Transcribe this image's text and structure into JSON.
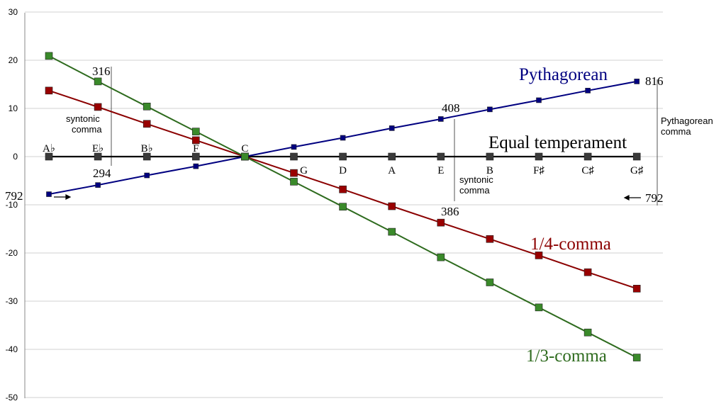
{
  "chart_data": {
    "type": "line",
    "title": "",
    "xlabel": "",
    "ylabel": "",
    "ylim": [
      -50,
      30
    ],
    "yticks": [
      30,
      20,
      10,
      0,
      -10,
      -20,
      -30,
      -40,
      -50
    ],
    "grid": true,
    "notes_left": [
      "A♭",
      "E♭",
      "B♭",
      "F",
      "C"
    ],
    "notes_right": [
      "G",
      "D",
      "A",
      "E",
      "B",
      "F♯",
      "C♯",
      "G♯"
    ],
    "series": [
      {
        "name": "Equal temperament",
        "color": "#000000",
        "marker": "#3a3a3a",
        "values": [
          0,
          0,
          0,
          0,
          0,
          0,
          0,
          0,
          0,
          0,
          0,
          0,
          0
        ]
      },
      {
        "name": "Pythagorean",
        "color": "#000080",
        "marker": "#000080",
        "values": [
          -7.8,
          -5.9,
          -3.9,
          -2.0,
          0,
          2.0,
          3.9,
          5.9,
          7.8,
          9.8,
          11.7,
          13.7,
          15.6
        ]
      },
      {
        "name": "1/4-comma",
        "color": "#8b0000",
        "marker": "#990000",
        "values": [
          13.7,
          10.3,
          6.8,
          3.4,
          0,
          -3.4,
          -6.8,
          -10.3,
          -13.7,
          -17.1,
          -20.5,
          -24.0,
          -27.4
        ]
      },
      {
        "name": "1/3-comma",
        "color": "#2e6b1e",
        "marker": "#3a8a2a",
        "values": [
          20.9,
          15.6,
          10.4,
          5.2,
          0,
          -5.2,
          -10.4,
          -15.6,
          -20.9,
          -26.1,
          -31.3,
          -36.5,
          -41.7
        ]
      }
    ],
    "annotations": {
      "a316": "316",
      "a294": "294",
      "syntonic_left": [
        "syntonic",
        "comma"
      ],
      "a408": "408",
      "a386": "386",
      "syntonic_right": [
        "syntonic",
        "comma"
      ],
      "a816": "816",
      "pyth_comma": [
        "Pythagorean",
        "comma"
      ],
      "a792_left": "792",
      "a792_right": "792"
    }
  }
}
